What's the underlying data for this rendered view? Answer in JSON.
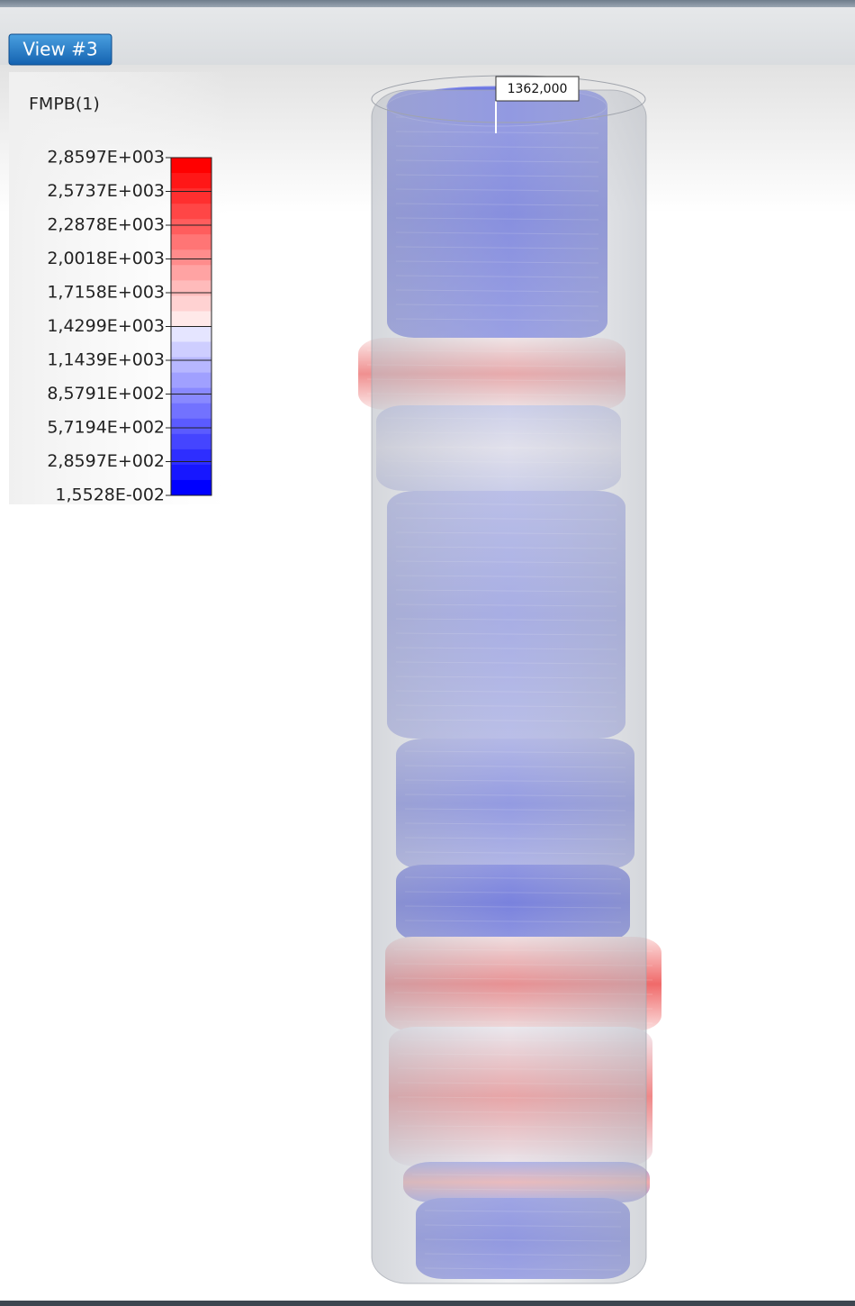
{
  "tab": {
    "label": "View #3"
  },
  "legend": {
    "title": "FMPB(1)",
    "labels": [
      "2,8597E+003",
      "2,5737E+003",
      "2,2878E+003",
      "2,0018E+003",
      "1,7158E+003",
      "1,4299E+003",
      "1,1439E+003",
      "8,5791E+002",
      "5,7194E+002",
      "2,8597E+002",
      "1,5528E-002"
    ]
  },
  "annotation": {
    "label": "1362,000"
  }
}
